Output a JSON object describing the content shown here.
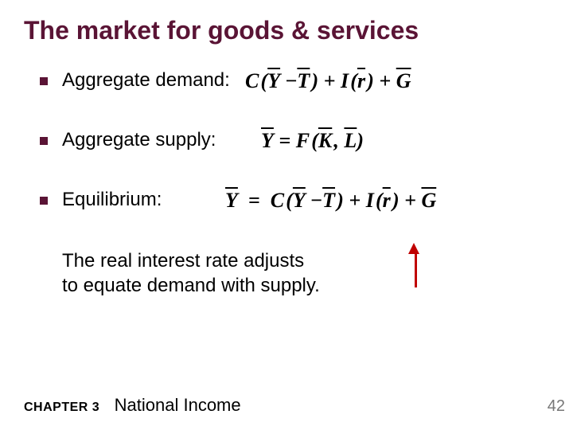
{
  "title": "The market for goods & services",
  "bullets": [
    {
      "label": "Aggregate demand:"
    },
    {
      "label": "Aggregate supply:"
    },
    {
      "label": "Equilibrium:"
    }
  ],
  "formulas": {
    "demand": {
      "C": "C",
      "Y": "Y",
      "T": "T",
      "I": "I",
      "r": "r",
      "G": "G",
      "open": "(",
      "close": ")",
      "minus": "−",
      "plus": "+",
      "comma": ","
    },
    "supply": {
      "Y": "Y",
      "F": "F",
      "K": "K",
      "L": "L",
      "eq": "=",
      "open": "(",
      "close": ")",
      "comma": ","
    },
    "equilibrium": {
      "Y": "Y",
      "C": "C",
      "T": "T",
      "I": "I",
      "r": "r",
      "G": "G",
      "eq": "=",
      "open": "(",
      "close": ")",
      "minus": "−",
      "plus": "+"
    }
  },
  "conclusion": "The real interest rate adjusts\nto equate demand with supply.",
  "footer": {
    "chapter": "CHAPTER 3",
    "chapter_title": "National Income",
    "page": "42"
  },
  "colors": {
    "title": "#5a1435",
    "bullet": "#5a1435",
    "text": "#000000",
    "arrow": "#c00000",
    "page": "#777777",
    "background": "#ffffff"
  }
}
